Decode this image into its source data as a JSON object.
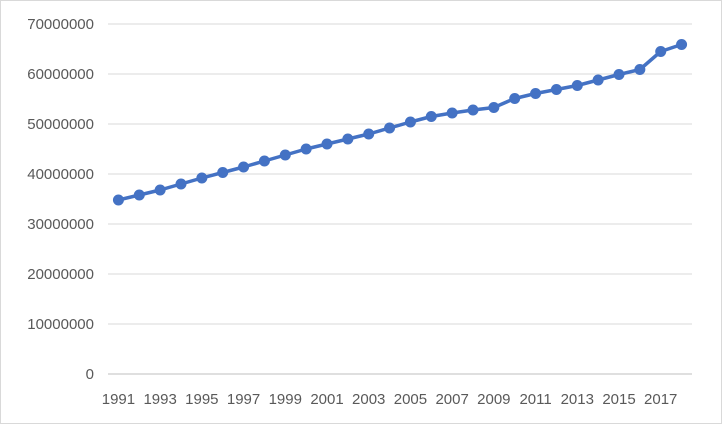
{
  "chart_data": {
    "type": "line",
    "title": "",
    "xlabel": "",
    "ylabel": "",
    "x": [
      1991,
      1992,
      1993,
      1994,
      1995,
      1996,
      1997,
      1998,
      1999,
      2000,
      2001,
      2002,
      2003,
      2004,
      2005,
      2006,
      2007,
      2008,
      2009,
      2010,
      2011,
      2012,
      2013,
      2014,
      2015,
      2016,
      2017,
      2018
    ],
    "x_tick_labels": [
      "1991",
      "1993",
      "1995",
      "1997",
      "1999",
      "2001",
      "2003",
      "2005",
      "2007",
      "2009",
      "2011",
      "2013",
      "2015",
      "2017"
    ],
    "y_tick_labels": [
      "0",
      "10000000",
      "20000000",
      "30000000",
      "40000000",
      "50000000",
      "60000000",
      "70000000"
    ],
    "ylim": [
      0,
      70000000
    ],
    "grid": true,
    "legend": "none",
    "series": [
      {
        "color": "#4472c4",
        "marker": "circle",
        "values": [
          34800000,
          35800000,
          36800000,
          38000000,
          39200000,
          40300000,
          41400000,
          42600000,
          43800000,
          45000000,
          46000000,
          47000000,
          48000000,
          49200000,
          50400000,
          51500000,
          52200000,
          52800000,
          53300000,
          55100000,
          56100000,
          56900000,
          57700000,
          58800000,
          59900000,
          60900000,
          64500000,
          65900000
        ]
      }
    ]
  }
}
